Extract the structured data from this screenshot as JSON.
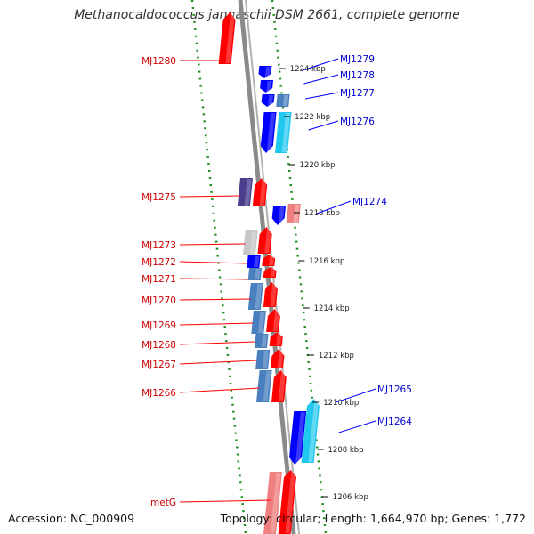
{
  "title": "Methanocaldococcus jannaschii DSM 2661, complete genome",
  "accession_text": "Accession: NC_000909",
  "topology_text": "Topology: circular; Length: 1,664,970 bp; Genes: 1,772",
  "colors": {
    "gene_red": "#ff0000",
    "gene_blue": "#0000ff",
    "gene_steel": "#4a7fbf",
    "gene_cyan": "#20c8f0",
    "gene_purple": "#4a3f8f",
    "gene_pink": "#f08080",
    "dotted_ring": "#1f8f1f",
    "backbone": "#8a8a8a"
  },
  "ticks": [
    {
      "label": "1224 kbp"
    },
    {
      "label": "1222 kbp"
    },
    {
      "label": "1220 kbp"
    },
    {
      "label": "1218 kbp"
    },
    {
      "label": "1216 kbp"
    },
    {
      "label": "1214 kbp"
    },
    {
      "label": "1212 kbp"
    },
    {
      "label": "1210 kbp"
    },
    {
      "label": "1208 kbp"
    },
    {
      "label": "1206 kbp"
    }
  ],
  "left_genes": [
    {
      "name": "MJ1280"
    },
    {
      "name": "MJ1275"
    },
    {
      "name": "MJ1273"
    },
    {
      "name": "MJ1272"
    },
    {
      "name": "MJ1271"
    },
    {
      "name": "MJ1270"
    },
    {
      "name": "MJ1269"
    },
    {
      "name": "MJ1268"
    },
    {
      "name": "MJ1267"
    },
    {
      "name": "MJ1266"
    },
    {
      "name": "metG"
    }
  ],
  "right_genes": [
    {
      "name": "MJ1279"
    },
    {
      "name": "MJ1278"
    },
    {
      "name": "MJ1277"
    },
    {
      "name": "MJ1276"
    },
    {
      "name": "MJ1274"
    },
    {
      "name": "MJ1265"
    },
    {
      "name": "MJ1264"
    }
  ]
}
